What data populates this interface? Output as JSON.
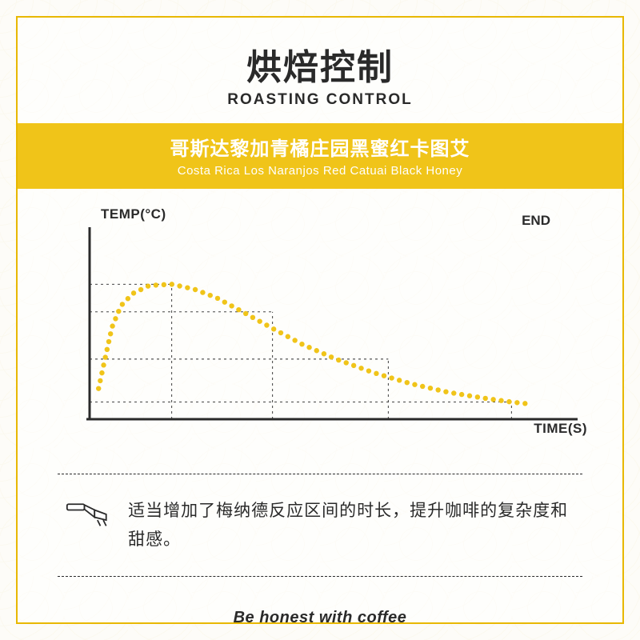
{
  "title": {
    "cn": "烘焙控制",
    "en": "ROASTING CONTROL"
  },
  "band": {
    "cn": "哥斯达黎加青橘庄园黑蜜红卡图艾",
    "en": "Costa Rica Los Naranjos Red Catuai Black Honey",
    "bg_color": "#f0c419",
    "text_color": "#ffffff"
  },
  "chart": {
    "type": "line",
    "ylabel": "TEMP(°C)",
    "xlabel": "TIME(S)",
    "end_label": "END",
    "axis_color": "#2a2a2a",
    "axis_width": 3,
    "curve_color": "#f0c419",
    "curve_dot_radius": 3.2,
    "curve_dot_spacing": 10,
    "grid_dash": "3,4",
    "grid_color": "#2a2a2a",
    "grid_width": 0.9,
    "xlim": [
      0,
      600
    ],
    "ylim": [
      0,
      300
    ],
    "curve_points": [
      [
        12,
        50
      ],
      [
        20,
        95
      ],
      [
        30,
        150
      ],
      [
        42,
        185
      ],
      [
        58,
        205
      ],
      [
        80,
        218
      ],
      [
        110,
        220
      ],
      [
        140,
        212
      ],
      [
        170,
        198
      ],
      [
        205,
        175
      ],
      [
        245,
        148
      ],
      [
        285,
        122
      ],
      [
        330,
        98
      ],
      [
        380,
        76
      ],
      [
        430,
        58
      ],
      [
        480,
        44
      ],
      [
        530,
        34
      ],
      [
        565,
        28
      ],
      [
        588,
        25
      ]
    ],
    "reference_markers_x": [
      110,
      245,
      400,
      565
    ],
    "reference_markers_y": [
      220,
      175,
      98,
      28
    ]
  },
  "note": {
    "icon": "portafilter-icon",
    "text": "适当增加了梅纳德反应区间的时长，提升咖啡的复杂度和甜感。"
  },
  "tagline": "Be honest with coffee",
  "frame_color": "#e8b800",
  "background_color": "#fdfcf8"
}
